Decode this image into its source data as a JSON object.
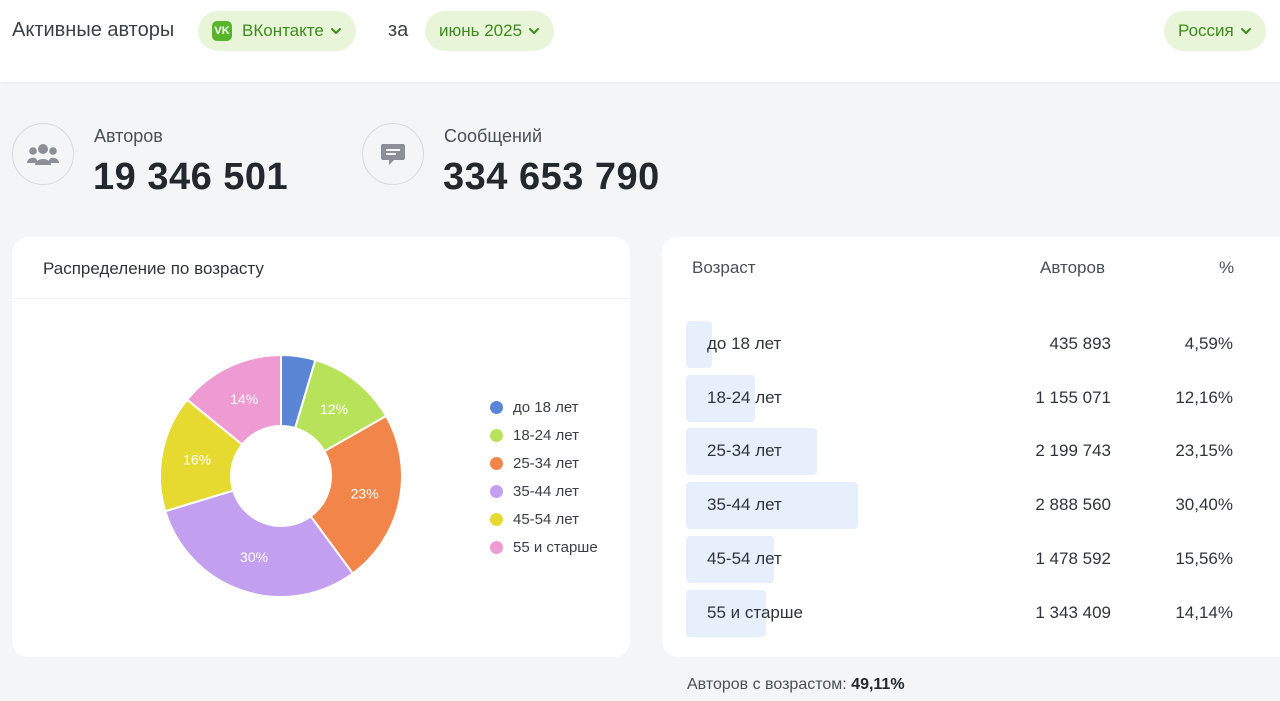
{
  "header": {
    "title": "Активные авторы",
    "network": {
      "badge": "VK",
      "label": "ВКонтакте"
    },
    "za_label": "за",
    "period": "июнь 2025",
    "region": "Россия",
    "accent_color": "#3d8b1d",
    "pill_bg": "#e8f5d9"
  },
  "stats": {
    "authors": {
      "label": "Авторов",
      "value": "19 346 501",
      "icon": "people-icon"
    },
    "messages": {
      "label": "Сообщений",
      "value": "334 653 790",
      "icon": "chat-icon"
    }
  },
  "age_chart_card": {
    "title": "Распределение по возрасту"
  },
  "chart_data": {
    "type": "pie",
    "donut": true,
    "title": "Распределение по возрасту",
    "categories": [
      "до 18 лет",
      "18-24 лет",
      "25-34 лет",
      "35-44 лет",
      "45-54 лет",
      "55 и старше"
    ],
    "values": [
      4.59,
      12.16,
      23.15,
      30.4,
      15.56,
      14.14
    ],
    "labels": [
      "",
      "12%",
      "23%",
      "30%",
      "16%",
      "14%"
    ],
    "colors": [
      "#5b86d6",
      "#b7e25a",
      "#f2854a",
      "#c39ff0",
      "#e6d92f",
      "#ee9bd3"
    ],
    "legend_position": "right"
  },
  "table": {
    "headers": {
      "age": "Возраст",
      "authors": "Авторов",
      "percent": "%"
    },
    "rows": [
      {
        "age": "до 18 лет",
        "authors": "435 893",
        "percent": "4,59%",
        "share": 4.59
      },
      {
        "age": "18-24 лет",
        "authors": "1 155 071",
        "percent": "12,16%",
        "share": 12.16
      },
      {
        "age": "25-34 лет",
        "authors": "2 199 743",
        "percent": "23,15%",
        "share": 23.15
      },
      {
        "age": "35-44 лет",
        "authors": "2 888 560",
        "percent": "30,40%",
        "share": 30.4
      },
      {
        "age": "45-54 лет",
        "authors": "1 478 592",
        "percent": "15,56%",
        "share": 15.56
      },
      {
        "age": "55 и старше",
        "authors": "1 343 409",
        "percent": "14,14%",
        "share": 14.14
      }
    ]
  },
  "footer": {
    "label": "Авторов с возрастом:",
    "value": "49,11%"
  }
}
